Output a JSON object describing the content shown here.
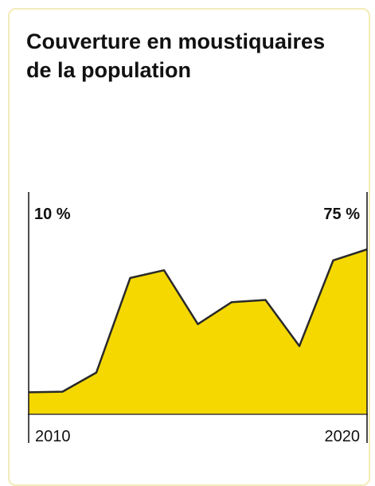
{
  "title_lines": [
    "Couverture en moustiquaires",
    "de la population"
  ],
  "colors": {
    "area_fill": "#f4d800",
    "line": "#2a2a2a",
    "card_border": "#f3ecb8"
  },
  "chart_data": {
    "type": "area",
    "title": "Couverture en moustiquaires de la population",
    "x": [
      2010,
      2011,
      2012,
      2013,
      2014,
      2015,
      2016,
      2017,
      2018,
      2019,
      2020
    ],
    "x_tick_labels": [
      "2010",
      "2020"
    ],
    "values": [
      10,
      10.3,
      19,
      62,
      65.5,
      41,
      51,
      52,
      31,
      70,
      75
    ],
    "start_label": "10 %",
    "end_label": "75 %",
    "xlim": [
      2010,
      2020
    ],
    "ylim": [
      0,
      75
    ],
    "grid": false,
    "legend": "none"
  }
}
